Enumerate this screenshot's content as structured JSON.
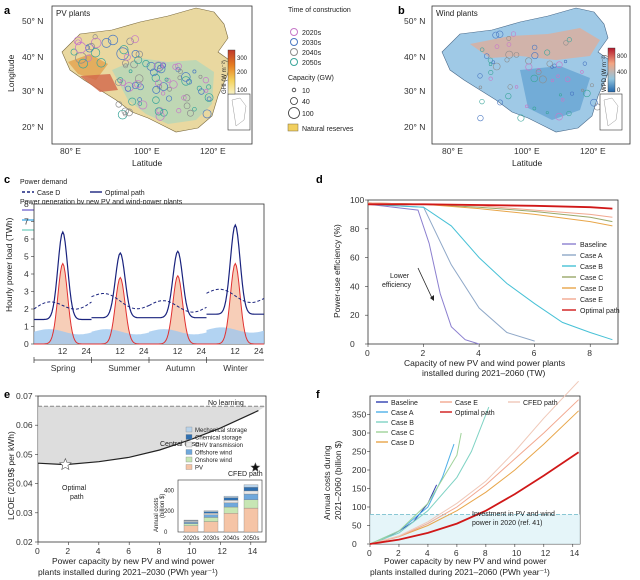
{
  "panels": {
    "a": {
      "letter": "a",
      "title": "PV plants",
      "lat_ticks": [
        "50° N",
        "40° N",
        "30° N",
        "20° N"
      ],
      "lon_ticks": [
        "80° E",
        "100° E",
        "120° E"
      ],
      "ylabel": "Longitude",
      "xlabel": "Latitude",
      "colorbar_label": "GHI (W m⁻²)",
      "colorbar_ticks": [
        "300",
        "200",
        "100"
      ],
      "colorbar_colors": [
        "#c0392b",
        "#e67e22",
        "#f4d35e",
        "#f7f1c6"
      ]
    },
    "legend_ab": {
      "time_title": "Time of construction",
      "times": [
        {
          "label": "2020s",
          "color": "#c678c8"
        },
        {
          "label": "2030s",
          "color": "#4a78c2"
        },
        {
          "label": "2040s",
          "color": "#8c8c8c"
        },
        {
          "label": "2050s",
          "color": "#3aa59a"
        }
      ],
      "capacity_title": "Capacity (GW)",
      "capacities": [
        "10",
        "40",
        "100"
      ],
      "reserves_label": "Natural reserves",
      "reserves_color": "#f1cf5e"
    },
    "b": {
      "letter": "b",
      "title": "Wind plants",
      "lat_ticks": [
        "50° N",
        "40° N",
        "30° N",
        "20° N"
      ],
      "lon_ticks": [
        "80° E",
        "100° E",
        "120° E"
      ],
      "xlabel": "Latitude",
      "colorbar_label": "WPD (W m⁻²)",
      "colorbar_ticks": [
        "800",
        "400",
        "0"
      ],
      "colorbar_colors": [
        "#b2182b",
        "#f4a582",
        "#92c5de",
        "#2166ac"
      ]
    },
    "c": {
      "letter": "c",
      "ylabel": "Hourly power load (TWh)",
      "legend_demand_title": "Power demand",
      "legend_gen_title": "Power generation by new PV and wind-power plants",
      "legend_items": [
        {
          "label": "Case D",
          "color": "#1a237e",
          "style": "dash"
        },
        {
          "label": "Optimal path",
          "color": "#1a237e",
          "style": "solid"
        },
        {
          "label": "Baseline",
          "color": "#7b6fd0",
          "style": "solid"
        },
        {
          "label": "Case C",
          "color": "#9aa86a",
          "style": "solid"
        },
        {
          "label": "Optimal path",
          "color": "#e03030",
          "style": "solid"
        },
        {
          "label": "Case A",
          "color": "#4fb0e8",
          "style": "solid"
        },
        {
          "label": "Case D",
          "color": "#e8a64a",
          "style": "solid"
        },
        {
          "label": "PV",
          "color": "#f6c9b0",
          "style": "box"
        },
        {
          "label": "Onshore wind",
          "color": "#cfe9b5",
          "style": "box"
        },
        {
          "label": "Case B",
          "color": "#7fd3c4",
          "style": "solid"
        },
        {
          "label": "Case E",
          "color": "#f2a890",
          "style": "solid"
        },
        {
          "label": "Offshore wind",
          "color": "#9fc8ef",
          "style": "box"
        }
      ],
      "y_ticks": [
        "0",
        "1",
        "2",
        "3",
        "4",
        "5",
        "6",
        "7",
        "8"
      ],
      "hour_ticks": [
        "12",
        "24"
      ],
      "seasons": [
        "Spring",
        "Summer",
        "Autumn",
        "Winter"
      ]
    },
    "d": {
      "letter": "d",
      "ylabel": "Power-use efficiency (%)",
      "xlabel_line1": "Capacity of new PV and wind power plants",
      "xlabel_line2": "installed during 2021–2060 (TW)",
      "annotation_line1": "Lower",
      "annotation_line2": "efficiency",
      "x_ticks": [
        "0",
        "2",
        "4",
        "6",
        "8"
      ],
      "y_ticks": [
        "0",
        "20",
        "40",
        "60",
        "80",
        "100"
      ]
    },
    "e": {
      "letter": "e",
      "ylabel": "LCOE (2019$ per kWh)",
      "xlabel_line1": "Power capacity by new PV and wind power",
      "xlabel_line2": "plants installed during 2021–2030 (PWh year⁻¹)",
      "no_learning": "No learning",
      "central_case": "Central case",
      "optimal_path": "Optimal",
      "optimal_path2": "path",
      "cfed_path": "CFED path",
      "x_ticks": [
        "0",
        "2",
        "4",
        "6",
        "8",
        "10",
        "12",
        "14"
      ],
      "y_ticks": [
        "0.07",
        "0.06",
        "0.05",
        "0.04",
        "0.03",
        "0.02"
      ],
      "inset": {
        "ylabel_line1": "Annual costs",
        "ylabel_line2": "(billion $)",
        "y_ticks": [
          "0",
          "200",
          "400"
        ],
        "decades": [
          "2020s",
          "2030s",
          "2040s",
          "2050s"
        ],
        "legend": [
          {
            "label": "Mechanical storage",
            "color": "#b9d3ea"
          },
          {
            "label": "Chemical storage",
            "color": "#2f6fb0"
          },
          {
            "label": "UHV transmission",
            "color": "#e8e8e8"
          },
          {
            "label": "Offshore wind",
            "color": "#6fa8dc"
          },
          {
            "label": "Onshore wind",
            "color": "#c7e6b4"
          },
          {
            "label": "PV",
            "color": "#f5c4a6"
          }
        ]
      }
    },
    "f": {
      "letter": "f",
      "ylabel_line1": "Annual costs during",
      "ylabel_line2": "2021–2060 (billion $)",
      "xlabel_line1": "Power capacity by new PV and wind power",
      "xlabel_line2": "plants installed during 2021–2060 (PWh year⁻¹)",
      "annotation_line1": "Investment in PV and wind",
      "annotation_line2": "power in 2020 (ref. 41)",
      "x_ticks": [
        "0",
        "2",
        "4",
        "6",
        "8",
        "10",
        "12",
        "14"
      ],
      "y_ticks": [
        "0",
        "50",
        "100",
        "150",
        "200",
        "250",
        "300",
        "350"
      ],
      "legend": [
        {
          "label": "Baseline",
          "color": "#3040b0"
        },
        {
          "label": "Case E",
          "color": "#f2a890"
        },
        {
          "label": "CFED path",
          "color": "#f0c8b8"
        },
        {
          "label": "Case A",
          "color": "#4fb0e8"
        },
        {
          "label": "Optimal path",
          "color": "#d01818"
        },
        {
          "label": "Case B",
          "color": "#7fd3c4"
        },
        {
          "label": "Case C",
          "color": "#9fd39a"
        },
        {
          "label": "Case D",
          "color": "#e8a64a"
        }
      ]
    }
  },
  "chart_data": [
    {
      "type": "line",
      "panel": "c",
      "ylabel": "Hourly power load (TWh)",
      "ylim": [
        0,
        8
      ],
      "categories": [
        "Spring 12",
        "Spring 24",
        "Summer 12",
        "Summer 24",
        "Autumn 12",
        "Autumn 24",
        "Winter 12",
        "Winter 24"
      ],
      "series": [
        {
          "name": "Optimal path",
          "values": [
            6.4,
            1.4,
            5.2,
            1.5,
            5.3,
            1.5,
            6.8,
            1.7
          ]
        },
        {
          "name": "Case D",
          "values": [
            2.0,
            2.4,
            2.7,
            2.2,
            2.2,
            2.1,
            2.9,
            2.6
          ]
        },
        {
          "name": "PV",
          "values": [
            4.6,
            0.1,
            3.8,
            0.1,
            3.9,
            0.1,
            4.6,
            0.1
          ]
        },
        {
          "name": "Offshore wind",
          "values": [
            0.7,
            0.6,
            0.7,
            0.6,
            0.7,
            0.6,
            0.8,
            0.7
          ]
        }
      ]
    },
    {
      "type": "line",
      "panel": "d",
      "ylabel": "Power-use efficiency (%)",
      "xlim": [
        0,
        9
      ],
      "ylim": [
        0,
        100
      ],
      "series": [
        {
          "name": "Baseline",
          "x": [
            0,
            1.8,
            2.2,
            2.6,
            3.0,
            3.5,
            4.0
          ],
          "values": [
            97,
            93,
            70,
            35,
            12,
            3,
            0
          ]
        },
        {
          "name": "Case A",
          "x": [
            0,
            2,
            3,
            4,
            5,
            6
          ],
          "values": [
            97,
            95,
            55,
            25,
            8,
            2
          ]
        },
        {
          "name": "Case B",
          "x": [
            0,
            2,
            3,
            4,
            5,
            6,
            7,
            8,
            8.8
          ],
          "values": [
            97,
            95,
            82,
            60,
            42,
            28,
            15,
            8,
            3
          ]
        },
        {
          "name": "Case C",
          "x": [
            0,
            2,
            4,
            6,
            8,
            8.8
          ],
          "values": [
            98,
            97,
            95,
            92,
            88,
            85
          ]
        },
        {
          "name": "Case D",
          "x": [
            0,
            2,
            4,
            6,
            8,
            8.8
          ],
          "values": [
            98,
            97,
            94,
            90,
            85,
            82
          ]
        },
        {
          "name": "Case E",
          "x": [
            0,
            2,
            4,
            6,
            8,
            8.8
          ],
          "values": [
            98,
            97,
            96,
            93,
            90,
            88
          ]
        },
        {
          "name": "Optimal path",
          "x": [
            0,
            2,
            4,
            6,
            8,
            8.8
          ],
          "values": [
            97,
            97,
            96.5,
            96,
            95,
            94
          ]
        }
      ]
    },
    {
      "type": "line",
      "panel": "e",
      "ylabel": "LCOE (2019$ per kWh)",
      "xlim": [
        0,
        15
      ],
      "ylim": [
        0.02,
        0.07
      ],
      "series": [
        {
          "name": "No learning",
          "x": [
            0,
            15
          ],
          "values": [
            0.0665,
            0.0665
          ]
        },
        {
          "name": "Central case",
          "x": [
            0,
            1.8,
            4,
            6,
            8,
            10,
            12,
            14.5
          ],
          "values": [
            0.047,
            0.0465,
            0.0475,
            0.049,
            0.0515,
            0.055,
            0.059,
            0.065
          ]
        }
      ],
      "inset": {
        "type": "bar",
        "categories": [
          "2020s",
          "2030s",
          "2040s",
          "2050s"
        ],
        "ylim": [
          0,
          500
        ],
        "series": [
          {
            "name": "PV",
            "values": [
              60,
              100,
              180,
              230
            ]
          },
          {
            "name": "Onshore wind",
            "values": [
              20,
              40,
              60,
              80
            ]
          },
          {
            "name": "Offshore wind",
            "values": [
              15,
              25,
              40,
              55
            ]
          },
          {
            "name": "UHV transmission",
            "values": [
              10,
              15,
              25,
              30
            ]
          },
          {
            "name": "Chemical storage",
            "values": [
              5,
              15,
              25,
              35
            ]
          },
          {
            "name": "Mechanical storage",
            "values": [
              5,
              10,
              15,
              25
            ]
          }
        ]
      }
    },
    {
      "type": "line",
      "panel": "f",
      "xlim": [
        0,
        14.5
      ],
      "ylim": [
        0,
        400
      ],
      "series": [
        {
          "name": "Baseline",
          "x": [
            0,
            1,
            2,
            3,
            4,
            4.6
          ],
          "values": [
            0,
            15,
            35,
            60,
            110,
            160
          ]
        },
        {
          "name": "Case A",
          "x": [
            0,
            2,
            4,
            5,
            5.8
          ],
          "values": [
            0,
            35,
            100,
            180,
            270
          ]
        },
        {
          "name": "Case B",
          "x": [
            0,
            2,
            4,
            6,
            7,
            8.2
          ],
          "values": [
            0,
            30,
            90,
            180,
            250,
            370
          ]
        },
        {
          "name": "Case C",
          "x": [
            0,
            2,
            4,
            6,
            6.3
          ],
          "values": [
            0,
            35,
            110,
            240,
            300
          ]
        },
        {
          "name": "Case D",
          "x": [
            0,
            2,
            4,
            6,
            8,
            10,
            12,
            14.4
          ],
          "values": [
            0,
            20,
            50,
            90,
            140,
            200,
            270,
            360
          ]
        },
        {
          "name": "Case E",
          "x": [
            0,
            2,
            4,
            6,
            8,
            10,
            12,
            14.4
          ],
          "values": [
            0,
            20,
            55,
            100,
            160,
            230,
            300,
            390
          ]
        },
        {
          "name": "CFED path",
          "x": [
            0,
            2,
            4,
            6,
            8,
            10,
            12,
            14.4
          ],
          "values": [
            0,
            22,
            60,
            110,
            170,
            250,
            340,
            440
          ]
        },
        {
          "name": "Optimal path",
          "x": [
            0,
            2,
            4,
            6,
            8,
            10,
            12,
            14.4
          ],
          "values": [
            0,
            12,
            30,
            55,
            90,
            135,
            185,
            248
          ]
        }
      ],
      "reference": {
        "name": "Investment in PV and wind power in 2020",
        "value": 80
      }
    }
  ]
}
